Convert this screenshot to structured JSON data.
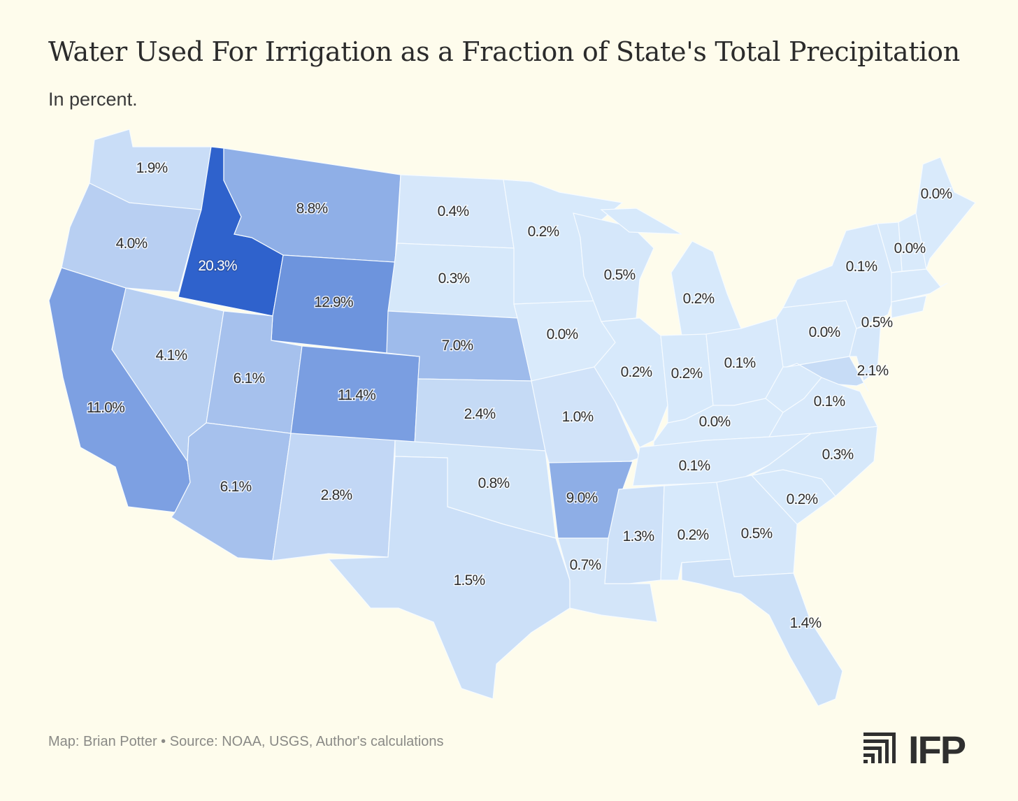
{
  "title": "Water Used For Irrigation as a Fraction of State's Total Precipitation",
  "subtitle": "In percent.",
  "footer": "Map: Brian Potter • Source: NOAA, USGS, Author's calculations",
  "logo_text": "IFP",
  "colors": {
    "background": "#fefcec",
    "low": "#d9eafb",
    "high": "#2f62cc",
    "text": "#2b2b2b"
  },
  "chart_data": {
    "type": "choropleth",
    "unit": "%",
    "color_range": [
      0,
      20.3
    ],
    "regions": [
      {
        "state": "WA",
        "value": 1.9,
        "label": "1.9%"
      },
      {
        "state": "OR",
        "value": 4.0,
        "label": "4.0%"
      },
      {
        "state": "ID",
        "value": 20.3,
        "label": "20.3%"
      },
      {
        "state": "MT",
        "value": 8.8,
        "label": "8.8%"
      },
      {
        "state": "WY",
        "value": 12.9,
        "label": "12.9%"
      },
      {
        "state": "NV",
        "value": 4.1,
        "label": "4.1%"
      },
      {
        "state": "CA",
        "value": 11.0,
        "label": "11.0%"
      },
      {
        "state": "UT",
        "value": 6.1,
        "label": "6.1%"
      },
      {
        "state": "AZ",
        "value": 6.1,
        "label": "6.1%"
      },
      {
        "state": "CO",
        "value": 11.4,
        "label": "11.4%"
      },
      {
        "state": "NM",
        "value": 2.8,
        "label": "2.8%"
      },
      {
        "state": "ND",
        "value": 0.4,
        "label": "0.4%"
      },
      {
        "state": "SD",
        "value": 0.3,
        "label": "0.3%"
      },
      {
        "state": "NE",
        "value": 7.0,
        "label": "7.0%"
      },
      {
        "state": "KS",
        "value": 2.4,
        "label": "2.4%"
      },
      {
        "state": "OK",
        "value": 0.8,
        "label": "0.8%"
      },
      {
        "state": "TX",
        "value": 1.5,
        "label": "1.5%"
      },
      {
        "state": "MN",
        "value": 0.2,
        "label": "0.2%"
      },
      {
        "state": "IA",
        "value": 0.0,
        "label": "0.0%"
      },
      {
        "state": "MO",
        "value": 1.0,
        "label": "1.0%"
      },
      {
        "state": "AR",
        "value": 9.0,
        "label": "9.0%"
      },
      {
        "state": "LA",
        "value": 0.7,
        "label": "0.7%"
      },
      {
        "state": "WI",
        "value": 0.5,
        "label": "0.5%"
      },
      {
        "state": "IL",
        "value": 0.2,
        "label": "0.2%"
      },
      {
        "state": "MI",
        "value": 0.2,
        "label": "0.2%"
      },
      {
        "state": "IN",
        "value": 0.2,
        "label": "0.2%"
      },
      {
        "state": "OH",
        "value": 0.1,
        "label": "0.1%"
      },
      {
        "state": "KY",
        "value": 0.0,
        "label": "0.0%"
      },
      {
        "state": "TN",
        "value": 0.1,
        "label": "0.1%"
      },
      {
        "state": "MS",
        "value": 1.3,
        "label": "1.3%"
      },
      {
        "state": "AL",
        "value": 0.2,
        "label": "0.2%"
      },
      {
        "state": "GA",
        "value": 0.5,
        "label": "0.5%"
      },
      {
        "state": "FL",
        "value": 1.4,
        "label": "1.4%"
      },
      {
        "state": "SC",
        "value": 0.2,
        "label": "0.2%"
      },
      {
        "state": "NC",
        "value": 0.3,
        "label": "0.3%"
      },
      {
        "state": "VA",
        "value": 0.1,
        "label": "0.1%"
      },
      {
        "state": "WV",
        "value": null,
        "label": ""
      },
      {
        "state": "PA",
        "value": 0.0,
        "label": "0.0%"
      },
      {
        "state": "NY",
        "value": 0.1,
        "label": "0.1%"
      },
      {
        "state": "NJ",
        "value": 0.5,
        "label": "0.5%"
      },
      {
        "state": "MD",
        "value": 2.1,
        "label": "2.1%"
      },
      {
        "state": "NH",
        "value": 0.0,
        "label": "0.0%"
      },
      {
        "state": "VT",
        "value": null,
        "label": ""
      },
      {
        "state": "ME",
        "value": 0.0,
        "label": "0.0%"
      },
      {
        "state": "MA",
        "value": null,
        "label": ""
      },
      {
        "state": "CT",
        "value": null,
        "label": ""
      }
    ]
  }
}
